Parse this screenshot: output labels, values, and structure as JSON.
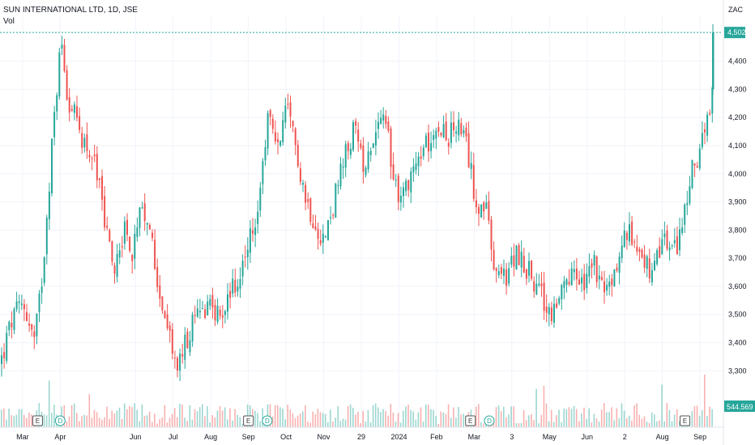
{
  "header": {
    "symbol_line": "SUN INTERNATIONAL LTD, 1D, JSE",
    "volume_label": "Vol"
  },
  "price_axis": {
    "currency": "ZAC",
    "last_price_label": "4,502",
    "volume_label": "544.569 K"
  },
  "colors": {
    "up": "#26a69a",
    "down": "#ef5350",
    "grid": "#f0f3fa",
    "axis_text": "#131722",
    "last_price_bg": "#26a69a"
  },
  "event_markers": [
    {
      "type": "earnings",
      "label": "E",
      "month_index": 1
    },
    {
      "type": "dividend",
      "label": "D",
      "month_index": 1.6
    },
    {
      "type": "earnings",
      "label": "E",
      "month_index": 6.6
    },
    {
      "type": "dividend",
      "label": "D",
      "month_index": 7.1
    },
    {
      "type": "earnings",
      "label": "E",
      "month_index": 12.5
    },
    {
      "type": "dividend",
      "label": "D",
      "month_index": 13.0
    },
    {
      "type": "earnings",
      "label": "E",
      "month_index": 18.2
    }
  ],
  "chart_data": {
    "type": "candlestick",
    "title": "SUN INTERNATIONAL LTD, 1D, JSE",
    "y_unit": "ZAC",
    "ylim": [
      3180,
      4560
    ],
    "y_ticks": [
      3300,
      3400,
      3500,
      3600,
      3700,
      3800,
      3900,
      4000,
      4100,
      4200,
      4300,
      4400
    ],
    "y_tick_labels": [
      "3,300",
      "3,400",
      "3,500",
      "3,600",
      "3,700",
      "3,800",
      "3,900",
      "4,000",
      "4,100",
      "4,200",
      "4,300",
      "4,400"
    ],
    "x_tick_labels": [
      "Mar",
      "Apr",
      "Jun",
      "Jul",
      "Aug",
      "Sep",
      "Oct",
      "Nov",
      "29",
      "2024",
      "Feb",
      "Mar",
      "3",
      "May",
      "Jun",
      "2",
      "Aug",
      "Sep"
    ],
    "x_tick_positions": [
      0.6,
      1.6,
      3.6,
      4.6,
      5.6,
      6.6,
      7.6,
      8.6,
      9.6,
      10.6,
      11.6,
      12.6,
      13.6,
      14.6,
      15.6,
      16.6,
      17.6,
      18.6
    ],
    "x_range": [
      0,
      19.2
    ],
    "last_price": 4502,
    "last_volume": "544.569 K",
    "grid": true,
    "path_keypoints": [
      [
        0.0,
        3330
      ],
      [
        0.3,
        3480
      ],
      [
        0.6,
        3540
      ],
      [
        0.9,
        3400
      ],
      [
        1.1,
        3640
      ],
      [
        1.3,
        4000
      ],
      [
        1.5,
        4330
      ],
      [
        1.6,
        4480
      ],
      [
        1.8,
        4260
      ],
      [
        2.1,
        4150
      ],
      [
        2.5,
        4040
      ],
      [
        2.8,
        3800
      ],
      [
        3.0,
        3660
      ],
      [
        3.3,
        3820
      ],
      [
        3.5,
        3700
      ],
      [
        3.7,
        3850
      ],
      [
        4.0,
        3780
      ],
      [
        4.2,
        3600
      ],
      [
        4.5,
        3400
      ],
      [
        4.7,
        3310
      ],
      [
        5.0,
        3430
      ],
      [
        5.3,
        3520
      ],
      [
        5.6,
        3550
      ],
      [
        5.8,
        3480
      ],
      [
        6.0,
        3560
      ],
      [
        6.3,
        3620
      ],
      [
        6.6,
        3750
      ],
      [
        6.9,
        3910
      ],
      [
        7.1,
        4230
      ],
      [
        7.3,
        4080
      ],
      [
        7.6,
        4220
      ],
      [
        7.9,
        4060
      ],
      [
        8.1,
        3910
      ],
      [
        8.3,
        3850
      ],
      [
        8.6,
        3760
      ],
      [
        8.9,
        3930
      ],
      [
        9.2,
        4080
      ],
      [
        9.4,
        4160
      ],
      [
        9.6,
        4030
      ],
      [
        9.8,
        4100
      ],
      [
        10.1,
        4200
      ],
      [
        10.3,
        4110
      ],
      [
        10.6,
        3900
      ],
      [
        10.9,
        4010
      ],
      [
        11.3,
        4100
      ],
      [
        11.6,
        4200
      ],
      [
        11.9,
        4120
      ],
      [
        12.1,
        4180
      ],
      [
        12.4,
        4080
      ],
      [
        12.6,
        3920
      ],
      [
        12.9,
        3860
      ],
      [
        13.1,
        3660
      ],
      [
        13.4,
        3620
      ],
      [
        13.7,
        3720
      ],
      [
        14.0,
        3660
      ],
      [
        14.3,
        3580
      ],
      [
        14.6,
        3500
      ],
      [
        14.9,
        3560
      ],
      [
        15.2,
        3640
      ],
      [
        15.5,
        3600
      ],
      [
        15.8,
        3680
      ],
      [
        16.0,
        3560
      ],
      [
        16.3,
        3640
      ],
      [
        16.6,
        3790
      ],
      [
        16.9,
        3760
      ],
      [
        17.1,
        3700
      ],
      [
        17.3,
        3620
      ],
      [
        17.6,
        3770
      ],
      [
        17.9,
        3720
      ],
      [
        18.2,
        3880
      ],
      [
        18.4,
        4030
      ],
      [
        18.6,
        4100
      ],
      [
        18.8,
        4180
      ],
      [
        18.95,
        4300
      ],
      [
        19.05,
        4502
      ]
    ]
  }
}
